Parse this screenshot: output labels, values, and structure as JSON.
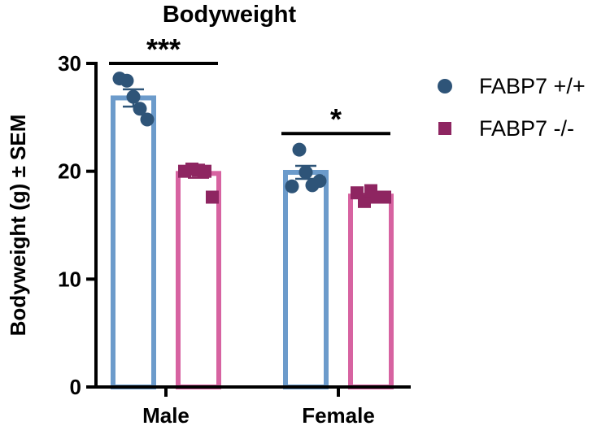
{
  "chart_data": {
    "type": "bar",
    "title": "Bodyweight",
    "xlabel": "",
    "ylabel": "Bodyweight (g) ± SEM",
    "ylim": [
      0,
      30
    ],
    "yticks": [
      0,
      10,
      20,
      30
    ],
    "ytick_labels": [
      "0",
      "10",
      "20",
      "30"
    ],
    "categories": [
      "Male",
      "Female"
    ],
    "legend_position": "right",
    "series": [
      {
        "name": "FABP7 +/+",
        "marker": "circle",
        "bar_color": "#6c9bcb",
        "point_color": "#2e5478",
        "values": [
          26.8,
          19.9
        ],
        "sem": [
          0.8,
          0.6
        ],
        "points": [
          [
            28.6,
            28.4,
            26.9,
            25.8,
            24.8
          ],
          [
            18.6,
            22.0,
            19.9,
            18.7,
            19.1
          ]
        ]
      },
      {
        "name": "FABP7 -/-",
        "marker": "square",
        "bar_color": "#d763a1",
        "point_color": "#8e2561",
        "values": [
          19.8,
          17.7
        ],
        "sem": [
          0.4,
          0.2
        ],
        "points": [
          [
            20.0,
            20.2,
            20.1,
            20.0,
            17.6
          ],
          [
            18.0,
            17.2,
            18.2,
            17.6,
            17.6
          ]
        ]
      }
    ],
    "annotations": [
      {
        "category": "Male",
        "label": "***",
        "y": 30.0
      },
      {
        "category": "Female",
        "label": "*",
        "y": 23.5
      }
    ]
  }
}
